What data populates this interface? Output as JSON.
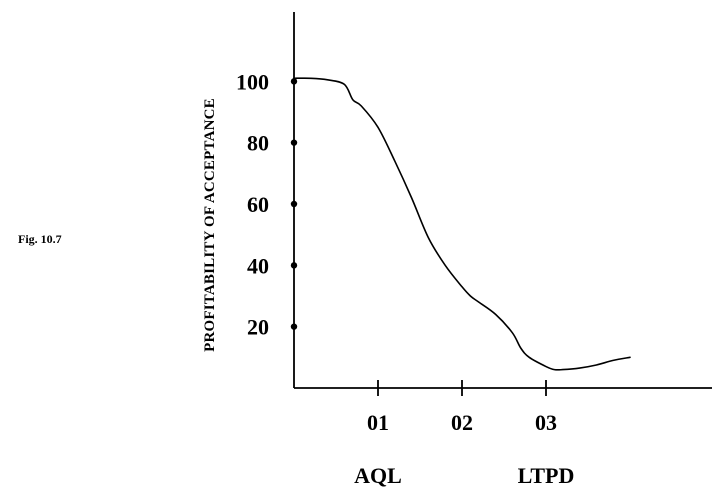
{
  "figure_label": "Fig. 10.7",
  "chart_data": {
    "type": "line",
    "title": "",
    "xlabel": "",
    "ylabel": "PROFITABILITY OF ACCEPTANCE",
    "xlim": [
      0,
      0.045
    ],
    "ylim": [
      0,
      120
    ],
    "y_ticks": [
      20,
      40,
      60,
      80,
      100
    ],
    "y_tick_labels": [
      "20",
      "40",
      "60",
      "80",
      "100"
    ],
    "x_ticks": [
      0.01,
      0.02,
      0.03
    ],
    "x_tick_labels": [
      "01",
      "02",
      "03"
    ],
    "x_annotations": [
      {
        "text": "AQL",
        "x": 0.01
      },
      {
        "text": "LTPD",
        "x": 0.03
      }
    ],
    "grid": false,
    "x": [
      0.0,
      0.002,
      0.004,
      0.006,
      0.007,
      0.008,
      0.01,
      0.012,
      0.014,
      0.016,
      0.018,
      0.02,
      0.021,
      0.022,
      0.024,
      0.026,
      0.027,
      0.028,
      0.03,
      0.031,
      0.032,
      0.034,
      0.036,
      0.038,
      0.04
    ],
    "y": [
      101,
      101,
      100.5,
      99,
      94,
      92,
      85,
      74,
      62,
      49,
      40,
      33,
      30,
      28,
      24,
      18,
      13,
      10,
      7,
      6,
      6,
      6.5,
      7.5,
      9,
      10
    ]
  }
}
